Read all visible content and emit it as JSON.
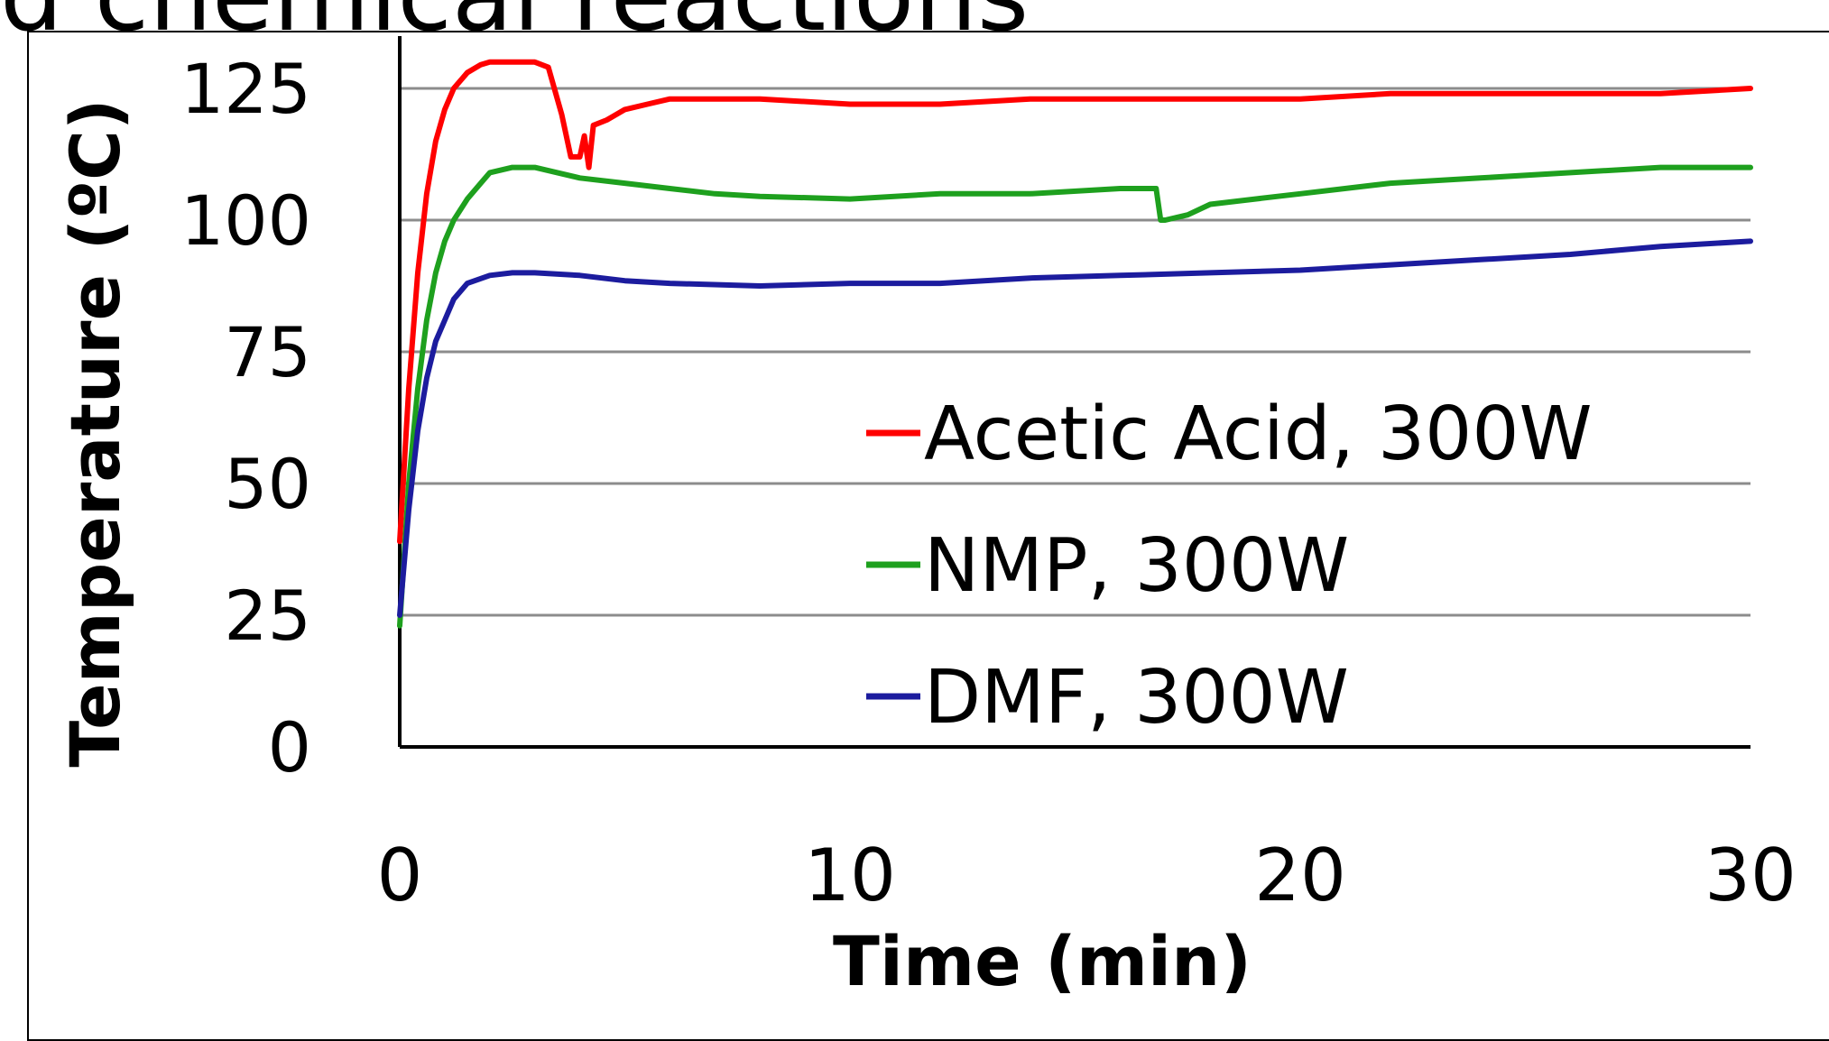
{
  "banner_text": "d chemical reactions",
  "chart_data": {
    "type": "line",
    "title": "",
    "xlabel": "Time (min)",
    "ylabel": "Temperature (ºC)",
    "xlim": [
      0,
      30
    ],
    "ylim": [
      0,
      125
    ],
    "x_ticks": [
      0,
      10,
      20,
      30
    ],
    "y_ticks": [
      0,
      25,
      50,
      75,
      100,
      125
    ],
    "grid": "horizontal",
    "legend_position": "center-right",
    "series": [
      {
        "name": "Acetic Acid, 300W",
        "color": "#ff0000",
        "x": [
          0,
          0.2,
          0.4,
          0.6,
          0.8,
          1.0,
          1.2,
          1.5,
          1.8,
          2.0,
          2.5,
          3.0,
          3.3,
          3.6,
          3.8,
          4.0,
          4.05,
          4.1,
          4.2,
          4.3,
          4.6,
          5.0,
          5.5,
          6,
          8,
          10,
          12,
          14,
          16,
          18,
          20,
          22,
          24,
          26,
          28,
          30
        ],
        "y": [
          39,
          68,
          90,
          105,
          115,
          121,
          125,
          128,
          129.5,
          130,
          130,
          130,
          129,
          120,
          112,
          112,
          114,
          116,
          110,
          118,
          119,
          121,
          122,
          123,
          123,
          122,
          122,
          123,
          123,
          123,
          123,
          124,
          124,
          124,
          124,
          125
        ]
      },
      {
        "name": "NMP, 300W",
        "color": "#1ea01e",
        "x": [
          0,
          0.2,
          0.4,
          0.6,
          0.8,
          1.0,
          1.2,
          1.5,
          1.8,
          2.0,
          2.5,
          3.0,
          4.0,
          5,
          6,
          7,
          8,
          10,
          12,
          14,
          16,
          16.8,
          16.9,
          17.0,
          17.5,
          18,
          19,
          20,
          22,
          24,
          26,
          28,
          30
        ],
        "y": [
          23,
          50,
          68,
          81,
          90,
          96,
          100,
          104,
          107,
          109,
          110,
          110,
          108,
          107,
          106,
          105,
          104.5,
          104,
          105,
          105,
          106,
          106,
          100,
          100,
          101,
          103,
          104,
          105,
          107,
          108,
          109,
          110,
          110
        ]
      },
      {
        "name": "DMF, 300W",
        "color": "#1c1c9e",
        "x": [
          0,
          0.2,
          0.4,
          0.6,
          0.8,
          1.0,
          1.2,
          1.5,
          2.0,
          2.5,
          3.0,
          4.0,
          5,
          6,
          8,
          10,
          12,
          14,
          16,
          18,
          20,
          22,
          24,
          26,
          28,
          30
        ],
        "y": [
          25,
          45,
          60,
          70,
          77,
          81,
          85,
          88,
          89.5,
          90,
          90,
          89.5,
          88.5,
          88,
          87.5,
          88,
          88,
          89,
          89.5,
          90,
          90.5,
          91.5,
          92.5,
          93.5,
          95,
          96
        ]
      }
    ]
  }
}
